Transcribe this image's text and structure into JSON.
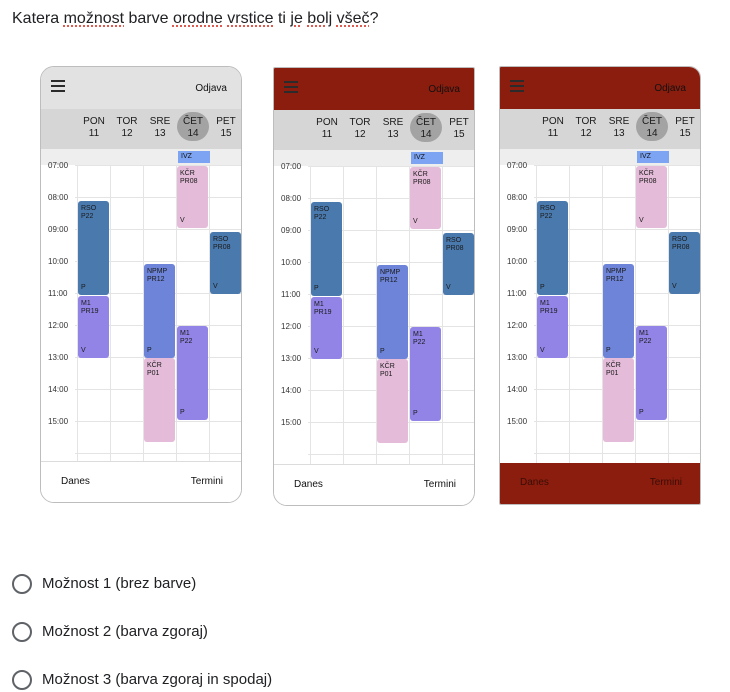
{
  "question": {
    "pre": "Katera ",
    "w1": "možnost",
    "mid1": " barve ",
    "w2": "orodne",
    "mid2": " ",
    "w3": "vrstice",
    "mid3": " ti ",
    "w4": "je",
    "mid4": " ",
    "w5": "bolj",
    "mid5": " ",
    "w6": "všeč",
    "post": "?"
  },
  "mockup": {
    "logout": "Odjava",
    "days": [
      {
        "name": "PON",
        "num": "11"
      },
      {
        "name": "TOR",
        "num": "12"
      },
      {
        "name": "SRE",
        "num": "13"
      },
      {
        "name": "ČET",
        "num": "14"
      },
      {
        "name": "PET",
        "num": "15"
      }
    ],
    "ivz": "IVZ",
    "times": [
      "07:00",
      "08:00",
      "09:00",
      "10:00",
      "11:00",
      "12:00",
      "13:00",
      "14:00",
      "15:00"
    ],
    "events": [
      {
        "code": "RSO",
        "room": "P22",
        "foot": "P"
      },
      {
        "code": "M1",
        "room": "PR19",
        "foot": "V"
      },
      {
        "code": "NPMP",
        "room": "PR12",
        "foot": "P"
      },
      {
        "code": "KČR",
        "room": "P01",
        "foot": ""
      },
      {
        "code": "KČR",
        "room": "PR08",
        "foot": "V"
      },
      {
        "code": "M1",
        "room": "P22",
        "foot": "P"
      },
      {
        "code": "RSO",
        "room": "PR08",
        "foot": "V"
      }
    ],
    "bottom_left": "Danes",
    "bottom_right": "Termini",
    "colors": {
      "header_gray": "#e2e2e2",
      "header_red": "#8b1d0e",
      "event_blue": "#4a79ad",
      "event_purple": "#9184e6",
      "event_periwinkle": "#6d84d8",
      "event_pink": "#e4bbd8",
      "ivz_blue": "#7ca4f2"
    }
  },
  "options": [
    {
      "label": "Možnost 1 (brez barve)",
      "selected": false
    },
    {
      "label": "Možnost 2 (barva zgoraj)",
      "selected": false
    },
    {
      "label": "Možnost 3 (barva zgoraj in spodaj)",
      "selected": false
    }
  ]
}
